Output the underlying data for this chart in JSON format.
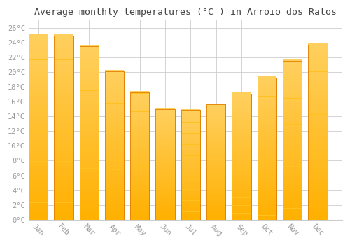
{
  "title": "Average monthly temperatures (°C ) in Arroio dos Ratos",
  "months": [
    "Jan",
    "Feb",
    "Mar",
    "Apr",
    "May",
    "Jun",
    "Jul",
    "Aug",
    "Sep",
    "Oct",
    "Nov",
    "Dec"
  ],
  "values": [
    25.0,
    25.0,
    23.5,
    20.1,
    17.3,
    15.0,
    14.9,
    15.6,
    17.1,
    19.3,
    21.5,
    23.7
  ],
  "bar_color_top": "#FFC020",
  "bar_color_bottom": "#FFB000",
  "bar_edge_color": "#E08000",
  "background_color": "#FFFFFF",
  "grid_color": "#CCCCCC",
  "text_color": "#999999",
  "title_color": "#444444",
  "ylim": [
    0,
    27
  ],
  "yticks": [
    0,
    2,
    4,
    6,
    8,
    10,
    12,
    14,
    16,
    18,
    20,
    22,
    24,
    26
  ],
  "bar_width": 0.75,
  "title_fontsize": 9.5
}
